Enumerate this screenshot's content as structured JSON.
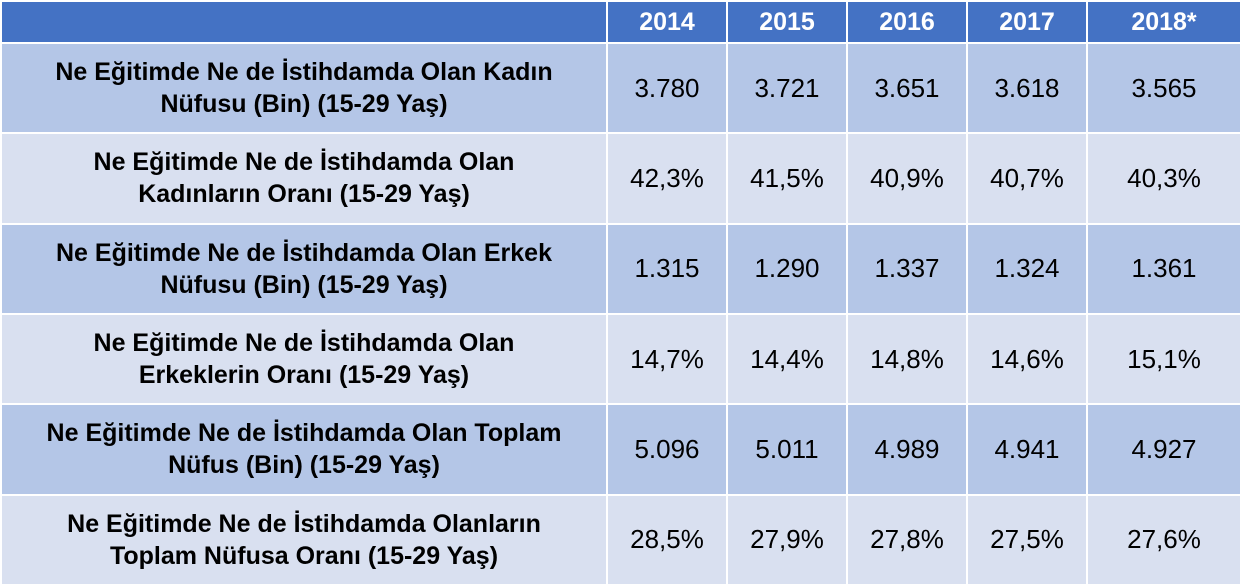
{
  "table": {
    "columns": [
      "2014",
      "2015",
      "2016",
      "2017",
      "2018*"
    ],
    "rows": [
      {
        "label": "Ne Eğitimde Ne de İstihdamda Olan Kadın Nüfusu (Bin) (15-29 Yaş)",
        "values": [
          "3.780",
          "3.721",
          "3.651",
          "3.618",
          "3.565"
        ]
      },
      {
        "label": "Ne Eğitimde Ne de İstihdamda Olan Kadınların Oranı (15-29 Yaş)",
        "values": [
          "42,3%",
          "41,5%",
          "40,9%",
          "40,7%",
          "40,3%"
        ]
      },
      {
        "label": "Ne Eğitimde Ne de İstihdamda Olan Erkek Nüfusu (Bin) (15-29 Yaş)",
        "values": [
          "1.315",
          "1.290",
          "1.337",
          "1.324",
          "1.361"
        ]
      },
      {
        "label": "Ne Eğitimde Ne de İstihdamda Olan Erkeklerin Oranı (15-29 Yaş)",
        "values": [
          "14,7%",
          "14,4%",
          "14,8%",
          "14,6%",
          "15,1%"
        ]
      },
      {
        "label": "Ne Eğitimde Ne de İstihdamda Olan Toplam Nüfus (Bin) (15-29 Yaş)",
        "values": [
          "5.096",
          "5.011",
          "4.989",
          "4.941",
          "4.927"
        ]
      },
      {
        "label": "Ne Eğitimde Ne de İstihdamda Olanların Toplam Nüfusa Oranı (15-29 Yaş)",
        "values": [
          "28,5%",
          "27,9%",
          "27,8%",
          "27,5%",
          "27,6%"
        ]
      }
    ]
  },
  "colors": {
    "header_bg": "#4472c4",
    "row_dark": "#b4c6e7",
    "row_light": "#d9e0f0"
  }
}
